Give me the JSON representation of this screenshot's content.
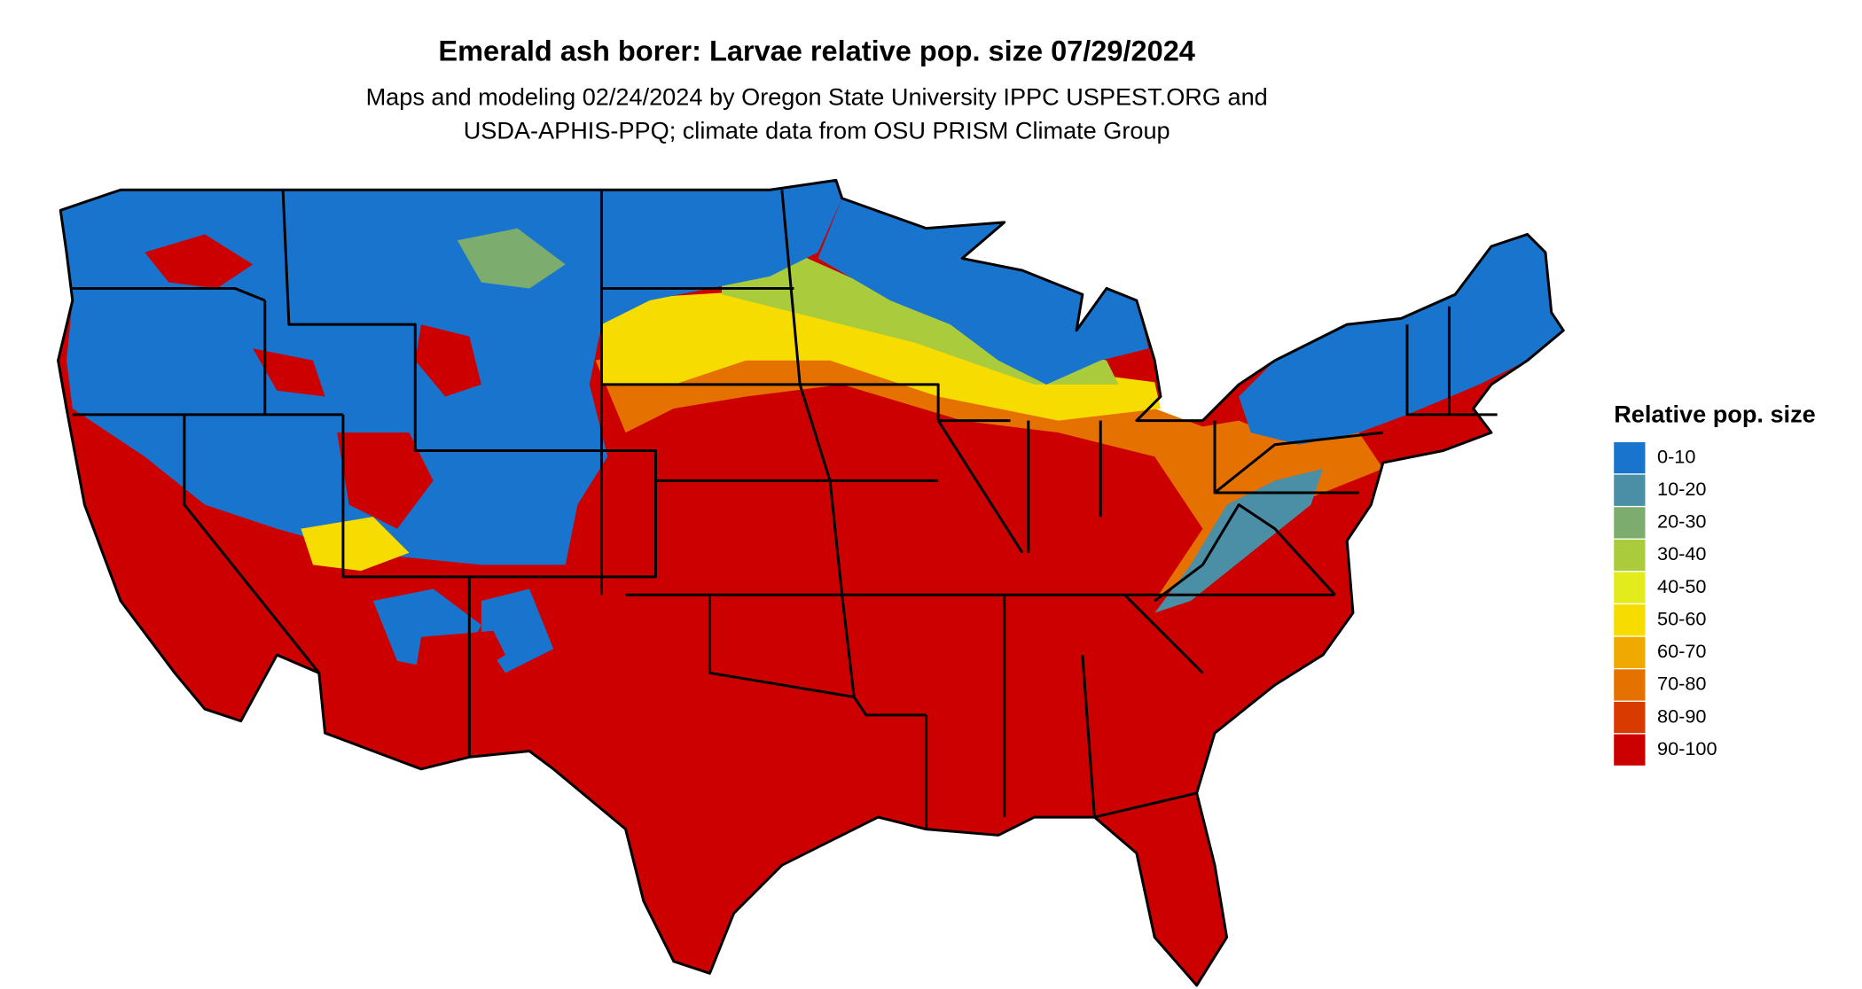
{
  "title": "Emerald ash borer: Larvae relative pop. size 07/29/2024",
  "subtitle": [
    "Maps and modeling 02/24/2024 by Oregon State University IPPC USPEST.ORG and",
    "USDA-APHIS-PPQ; climate data from OSU PRISM Climate Group"
  ],
  "legend": {
    "title": "Relative pop. size",
    "items": [
      {
        "label": "0-10",
        "color": "#1874cd"
      },
      {
        "label": "10-20",
        "color": "#4b8fa6"
      },
      {
        "label": "20-30",
        "color": "#7dac6f"
      },
      {
        "label": "30-40",
        "color": "#aacc3c"
      },
      {
        "label": "40-50",
        "color": "#e2ec1c"
      },
      {
        "label": "50-60",
        "color": "#f6dc00"
      },
      {
        "label": "60-70",
        "color": "#f0a900"
      },
      {
        "label": "70-80",
        "color": "#e57200"
      },
      {
        "label": "80-90",
        "color": "#d83a00"
      },
      {
        "label": "90-100",
        "color": "#cd0000"
      }
    ]
  }
}
